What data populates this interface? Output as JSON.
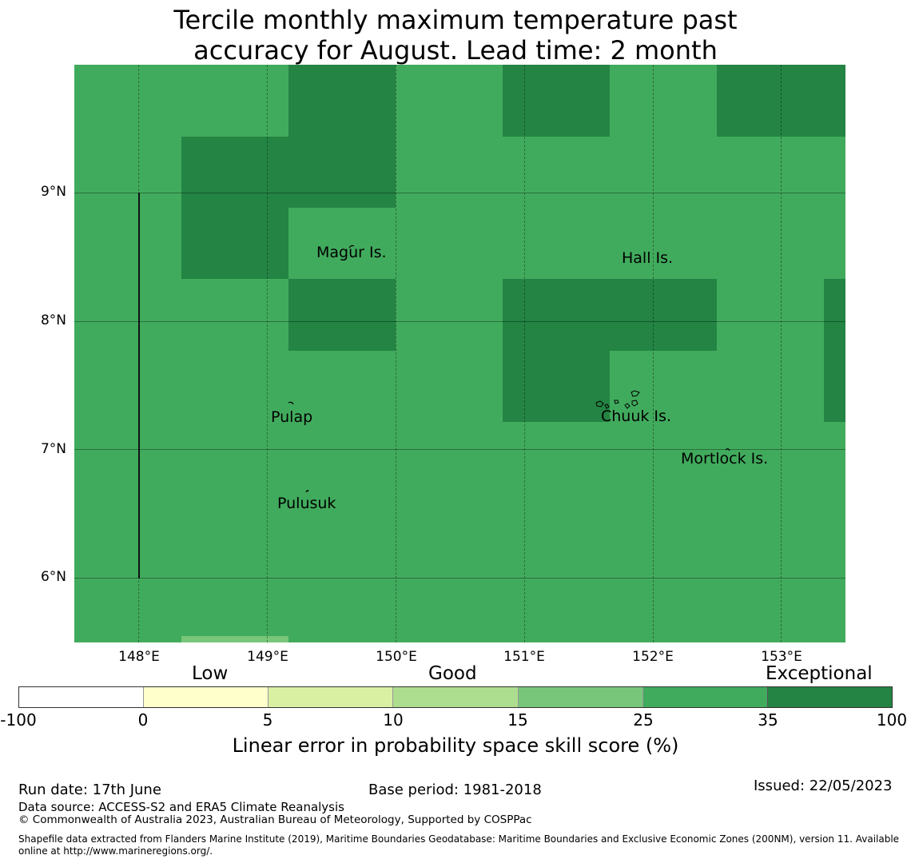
{
  "title_line1": "Tercile monthly maximum temperature past",
  "title_line2": "accuracy for August. Lead time: 2 month",
  "map": {
    "longitude_ticks": [
      "148°E",
      "149°E",
      "150°E",
      "151°E",
      "152°E",
      "153°E"
    ],
    "latitude_ticks": [
      "9°N",
      "8°N",
      "7°N",
      "6°N"
    ],
    "places": [
      "Magur Is.",
      "Hall Is.",
      "Pulap",
      "Chuuk Is.",
      "Mortlock Is.",
      "Pulusuk"
    ],
    "colors": {
      "good_25_35": "#41ab5d",
      "exceptional_35_100": "#238443",
      "good_15_25": "#78c679"
    }
  },
  "colorbar": {
    "categories": [
      "Low",
      "Good",
      "Exceptional"
    ],
    "ticks": [
      "-100",
      "0",
      "5",
      "10",
      "15",
      "25",
      "35",
      "100"
    ],
    "colors": [
      "#ffffff",
      "#ffffcc",
      "#d9f0a3",
      "#addd8e",
      "#78c679",
      "#41ab5d",
      "#238443"
    ],
    "label": "Linear error in probability space skill score (%)"
  },
  "footer": {
    "run_date": "Run date: 17th June",
    "base_period": "Base period: 1981-2018",
    "issued": "Issued: 22/05/2023",
    "data_source": "Data source: ACCESS-S2 and ERA5 Climate Reanalysis",
    "copyright": "© Commonwealth of Australia 2023, Australian Bureau of Meteorology, Supported by COSPPac",
    "shapefile_line1": "Shapefile data extracted from Flanders Marine Institute (2019), Maritime Boundaries Geodatabase: Maritime Boundaries and Exclusive Economic Zones (200NM), version 11. Available",
    "shapefile_line2": "online at http://www.marineregions.org/."
  }
}
